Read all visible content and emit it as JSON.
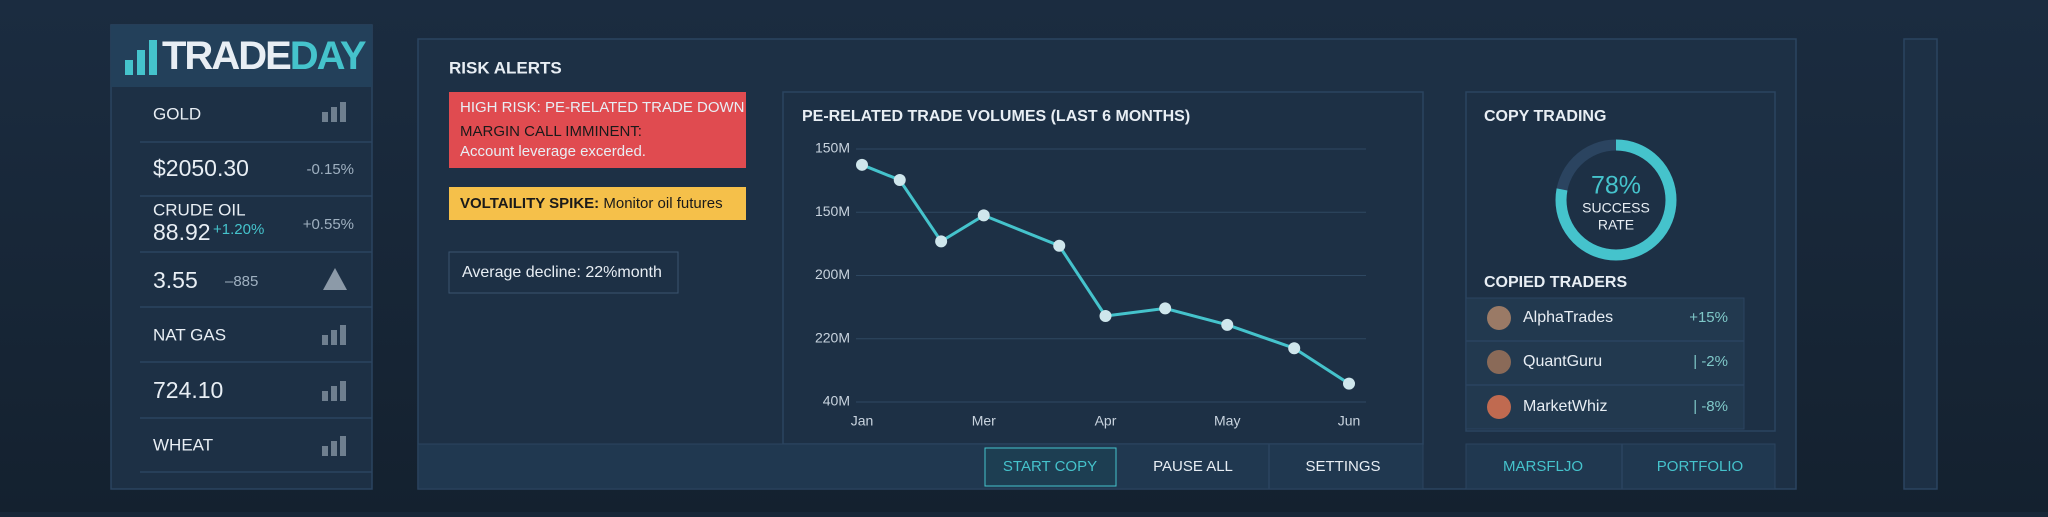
{
  "logo": {
    "part1": "TRADE",
    "part2": "DAY"
  },
  "watchlist": [
    {
      "name": "GOLD"
    },
    {
      "price": "$2050.30",
      "change": "-0.15%"
    },
    {
      "name": "CRUDE OIL",
      "price": "88.92",
      "change": "+1.20%",
      "change2": "+0.55%"
    },
    {
      "price": "3.55",
      "change": "–885"
    },
    {
      "name": "NAT GAS"
    },
    {
      "price": "724.10"
    },
    {
      "name": "WHEAT"
    }
  ],
  "risk_alerts": {
    "title": "RISK ALERTS",
    "high_risk": [
      "HIGH RISK: PE-RELATED TRADE DOWN",
      "MARGIN CALL IMMINENT:",
      "Account leverage excerded."
    ],
    "spike_label": "VOLTAILITY SPIKE:",
    "spike_text": " Monitor oil futures",
    "note": "Average decline: 22%month"
  },
  "chart_data": {
    "type": "line",
    "title": "PE-RELATED TRADE VOLUMES (LAST 6 MONTHS)",
    "x": [
      0,
      0.31,
      0.65,
      1.0,
      1.62,
      2.0,
      2.49,
      3.0,
      3.55,
      4.0
    ],
    "values": [
      3.75,
      3.51,
      2.54,
      2.95,
      2.47,
      1.36,
      1.48,
      1.22,
      0.85,
      0.29
    ],
    "color": "#45c3cc",
    "xlim": [
      0,
      4
    ],
    "xticks": [
      {
        "value": 0,
        "label": "Jan"
      },
      {
        "value": 1,
        "label": "Mer"
      },
      {
        "value": 2,
        "label": "Apr"
      },
      {
        "value": 3,
        "label": "May"
      },
      {
        "value": 4,
        "label": "Jun"
      }
    ],
    "ylim": [
      0,
      4
    ],
    "yticks": [
      {
        "value": 4,
        "label": "150M"
      },
      {
        "value": 3,
        "label": "150M"
      },
      {
        "value": 2,
        "label": "200M"
      },
      {
        "value": 1,
        "label": "220M"
      },
      {
        "value": 0,
        "label": "40M"
      }
    ],
    "grid": true
  },
  "buttons": [
    "START COPY",
    "PAUSE ALL",
    "SETTINGS"
  ],
  "copy_trading": {
    "title": "COPY TRADING",
    "success_rate": {
      "value": 78,
      "label": "78%"
    },
    "success_label": [
      "SUCCESS",
      "RATE"
    ],
    "traders_title": "COPIED TRADERS",
    "traders": [
      {
        "name": "AlphaTrades",
        "change": "+15%"
      },
      {
        "name": "QuantGuru",
        "change": "| -2%"
      },
      {
        "name": "MarketWhiz",
        "change": "| -8%"
      }
    ],
    "buttons": [
      "MARSFLJO",
      "PORTFOLIO"
    ]
  }
}
